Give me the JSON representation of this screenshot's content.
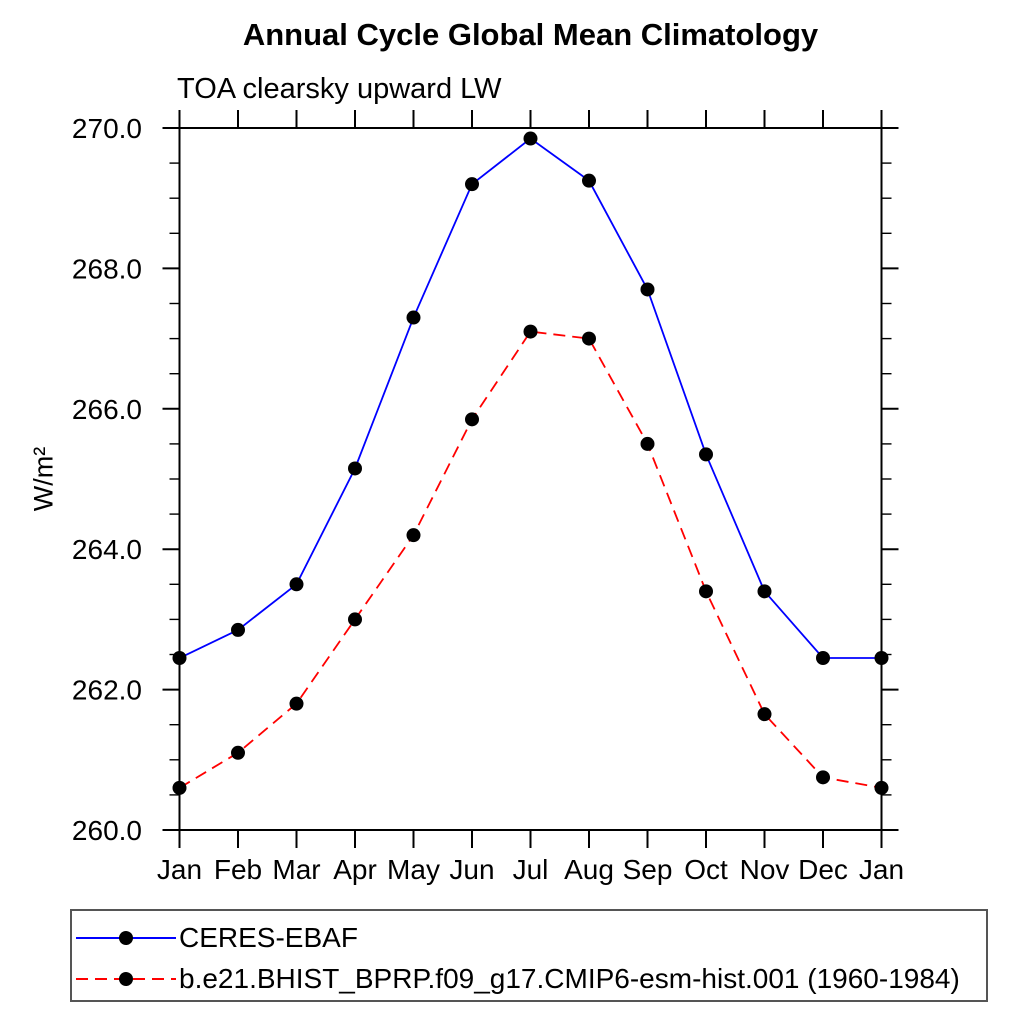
{
  "page": {
    "background": "#ffffff"
  },
  "chart_data": {
    "type": "line",
    "title": "Annual Cycle Global Mean Climatology",
    "subtitle": "TOA clearsky upward LW",
    "ylabel": "W/m²",
    "xlabel": "",
    "x_categories": [
      "Jan",
      "Feb",
      "Mar",
      "Apr",
      "May",
      "Jun",
      "Jul",
      "Aug",
      "Sep",
      "Oct",
      "Nov",
      "Dec",
      "Jan"
    ],
    "y_axis": {
      "min": 260.0,
      "max": 270.0,
      "major_step": 2.0,
      "minor_step": 0.5,
      "tick_labels": [
        "260.0",
        "262.0",
        "264.0",
        "266.0",
        "268.0",
        "270.0"
      ]
    },
    "grid": "off",
    "legend_position": "bottom-left-box",
    "axis_color": "#000000",
    "marker_color": "#000000",
    "series": [
      {
        "name": "CERES-EBAF",
        "color": "#0000ff",
        "line_style": "solid",
        "marker": "filled-circle",
        "values": [
          262.45,
          262.85,
          263.5,
          265.15,
          267.3,
          269.2,
          269.85,
          269.25,
          267.7,
          265.35,
          263.4,
          262.45,
          262.45
        ]
      },
      {
        "name": "b.e21.BHIST_BPRP.f09_g17.CMIP6-esm-hist.001 (1960-1984)",
        "color": "#ff0000",
        "line_style": "dashed",
        "marker": "filled-circle",
        "values": [
          260.6,
          261.1,
          261.8,
          263.0,
          264.2,
          265.85,
          267.1,
          267.0,
          265.5,
          263.4,
          261.65,
          260.75,
          260.6
        ]
      }
    ]
  }
}
